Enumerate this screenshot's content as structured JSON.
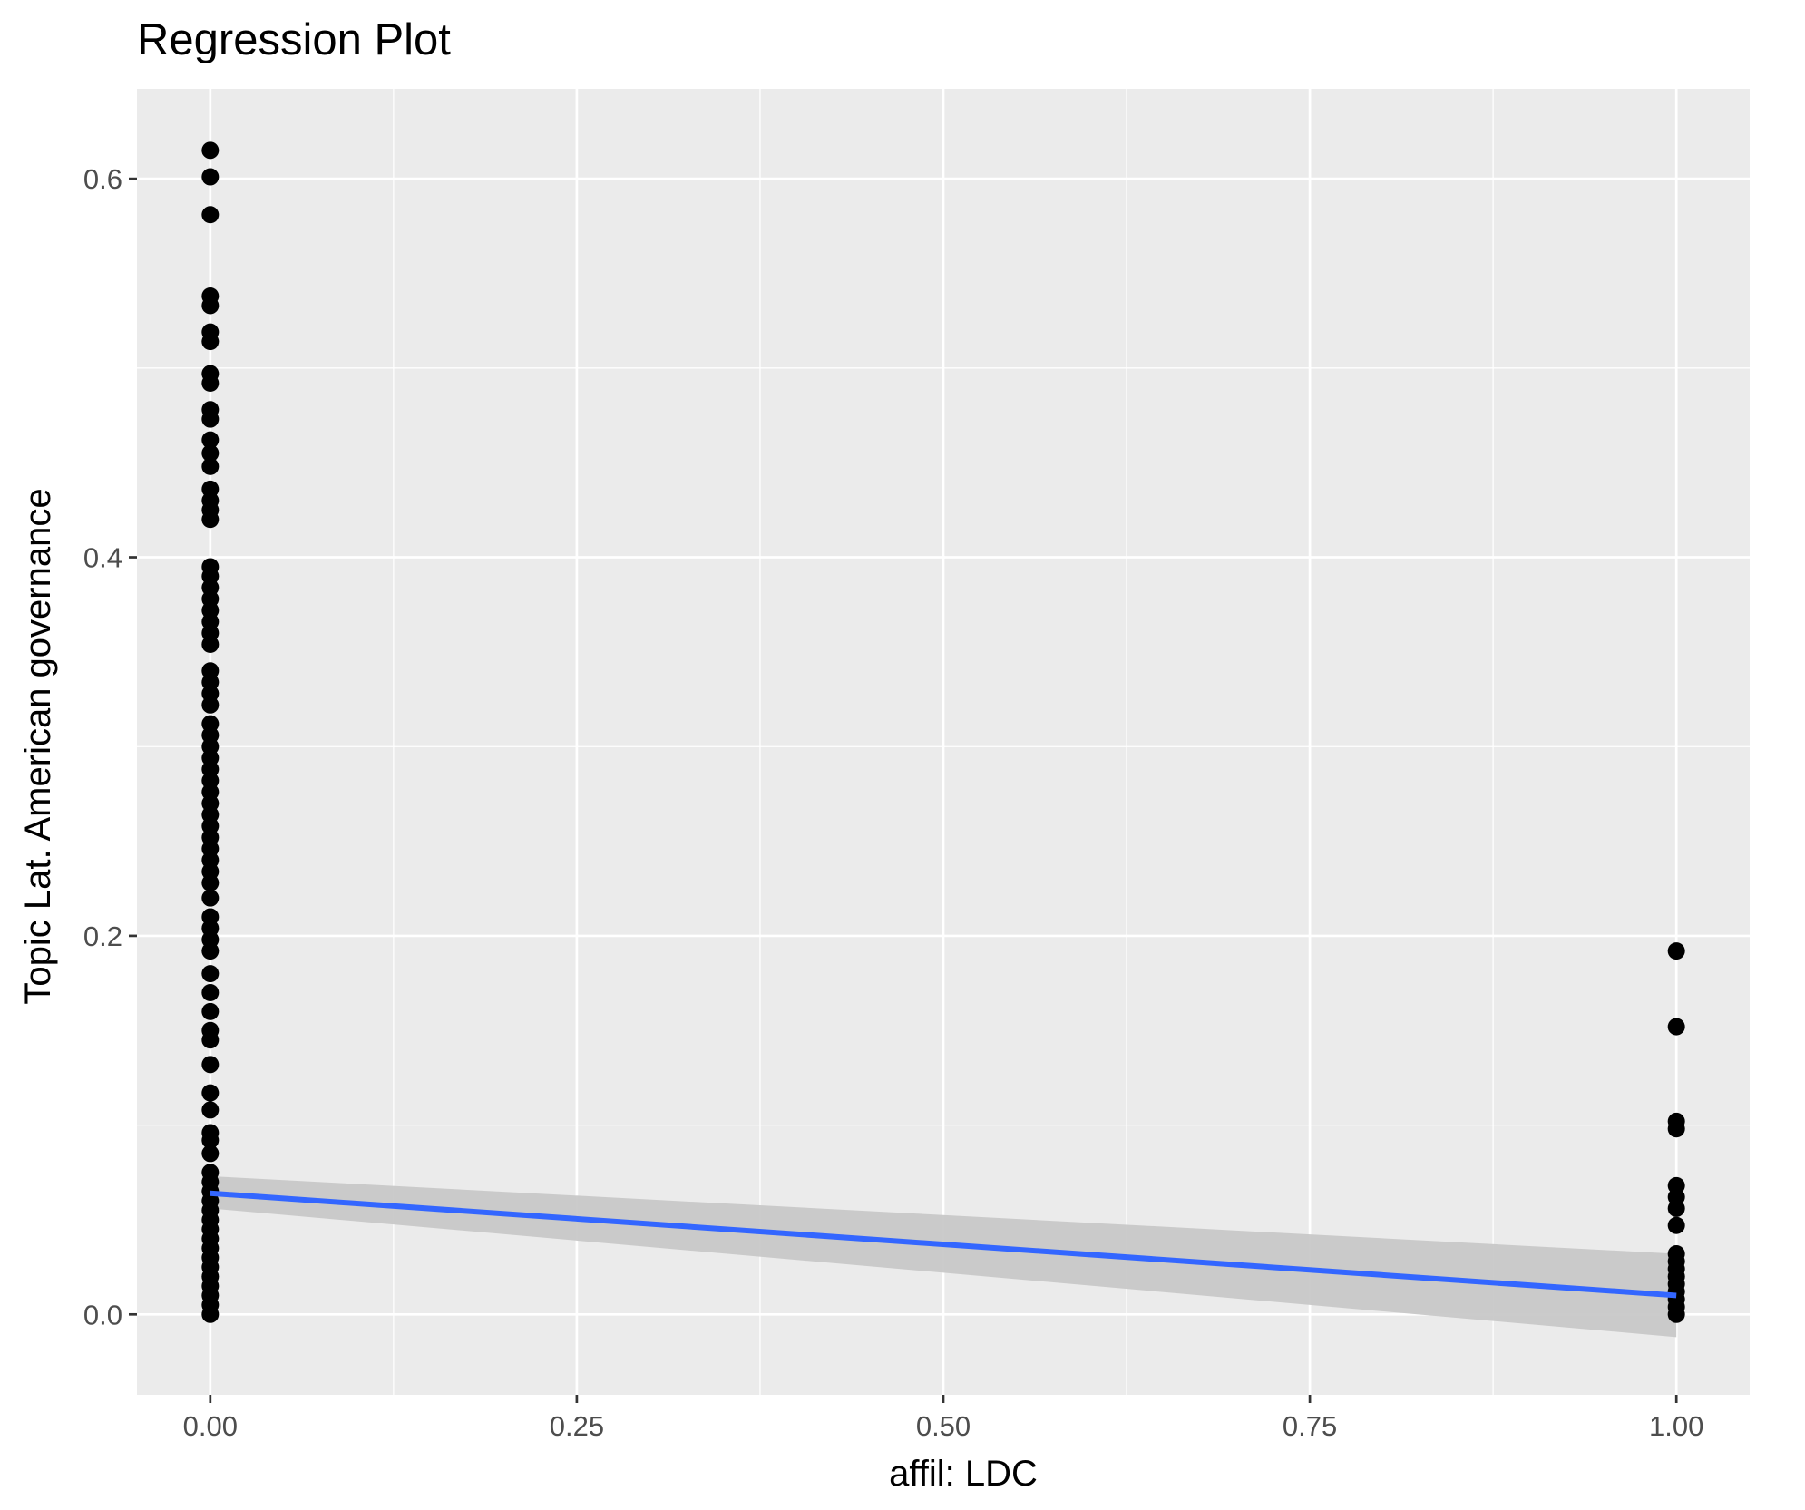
{
  "chart_data": {
    "type": "scatter",
    "title": "Regression Plot",
    "xlabel": "affil: LDC",
    "ylabel": "Topic Lat. American governance",
    "xlim": [
      -0.05,
      1.05
    ],
    "ylim": [
      -0.0425,
      0.6475
    ],
    "x_ticks": [
      0.0,
      0.25,
      0.5,
      0.75,
      1.0
    ],
    "x_tick_labels": [
      "0.00",
      "0.25",
      "0.50",
      "0.75",
      "1.00"
    ],
    "y_ticks": [
      0.0,
      0.2,
      0.4,
      0.6
    ],
    "y_tick_labels": [
      "0.0",
      "0.2",
      "0.4",
      "0.6"
    ],
    "grid": true,
    "series": [
      {
        "type": "points",
        "color": "#000000",
        "points": [
          [
            0,
            0.615
          ],
          [
            0,
            0.601
          ],
          [
            0,
            0.581
          ],
          [
            0,
            0.538
          ],
          [
            0,
            0.533
          ],
          [
            0,
            0.519
          ],
          [
            0,
            0.514
          ],
          [
            0,
            0.497
          ],
          [
            0,
            0.492
          ],
          [
            0,
            0.478
          ],
          [
            0,
            0.473
          ],
          [
            0,
            0.462
          ],
          [
            0,
            0.455
          ],
          [
            0,
            0.448
          ],
          [
            0,
            0.436
          ],
          [
            0,
            0.43
          ],
          [
            0,
            0.425
          ],
          [
            0,
            0.42
          ],
          [
            0,
            0.395
          ],
          [
            0,
            0.39
          ],
          [
            0,
            0.384
          ],
          [
            0,
            0.378
          ],
          [
            0,
            0.372
          ],
          [
            0,
            0.366
          ],
          [
            0,
            0.36
          ],
          [
            0,
            0.354
          ],
          [
            0,
            0.34
          ],
          [
            0,
            0.334
          ],
          [
            0,
            0.328
          ],
          [
            0,
            0.322
          ],
          [
            0,
            0.312
          ],
          [
            0,
            0.306
          ],
          [
            0,
            0.3
          ],
          [
            0,
            0.294
          ],
          [
            0,
            0.288
          ],
          [
            0,
            0.282
          ],
          [
            0,
            0.276
          ],
          [
            0,
            0.27
          ],
          [
            0,
            0.264
          ],
          [
            0,
            0.258
          ],
          [
            0,
            0.252
          ],
          [
            0,
            0.246
          ],
          [
            0,
            0.24
          ],
          [
            0,
            0.234
          ],
          [
            0,
            0.228
          ],
          [
            0,
            0.22
          ],
          [
            0,
            0.21
          ],
          [
            0,
            0.204
          ],
          [
            0,
            0.198
          ],
          [
            0,
            0.192
          ],
          [
            0,
            0.18
          ],
          [
            0,
            0.17
          ],
          [
            0,
            0.16
          ],
          [
            0,
            0.15
          ],
          [
            0,
            0.145
          ],
          [
            0,
            0.132
          ],
          [
            0,
            0.117
          ],
          [
            0,
            0.108
          ],
          [
            0,
            0.096
          ],
          [
            0,
            0.092
          ],
          [
            0,
            0.085
          ],
          [
            0,
            0.075
          ],
          [
            0,
            0.07
          ],
          [
            0,
            0.065
          ],
          [
            0,
            0.06
          ],
          [
            0,
            0.055
          ],
          [
            0,
            0.05
          ],
          [
            0,
            0.045
          ],
          [
            0,
            0.04
          ],
          [
            0,
            0.035
          ],
          [
            0,
            0.03
          ],
          [
            0,
            0.025
          ],
          [
            0,
            0.02
          ],
          [
            0,
            0.015
          ],
          [
            0,
            0.01
          ],
          [
            0,
            0.005
          ],
          [
            0,
            0.0
          ],
          [
            1,
            0.192
          ],
          [
            1,
            0.152
          ],
          [
            1,
            0.102
          ],
          [
            1,
            0.098
          ],
          [
            1,
            0.068
          ],
          [
            1,
            0.062
          ],
          [
            1,
            0.056
          ],
          [
            1,
            0.047
          ],
          [
            1,
            0.032
          ],
          [
            1,
            0.028
          ],
          [
            1,
            0.024
          ],
          [
            1,
            0.02
          ],
          [
            1,
            0.016
          ],
          [
            1,
            0.012
          ],
          [
            1,
            0.008
          ],
          [
            1,
            0.004
          ],
          [
            1,
            0.0
          ]
        ]
      },
      {
        "type": "regression-line",
        "color": "#3366ff",
        "x": [
          0,
          1
        ],
        "y": [
          0.064,
          0.01
        ]
      },
      {
        "type": "confidence-band",
        "color": "#c8c8c8",
        "x": [
          0,
          1
        ],
        "lower": [
          0.056,
          -0.012
        ],
        "upper": [
          0.073,
          0.032
        ]
      }
    ]
  }
}
